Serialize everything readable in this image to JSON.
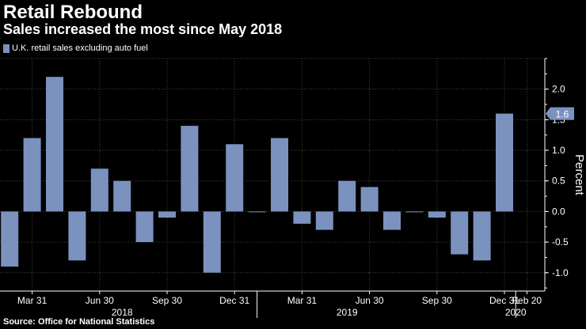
{
  "title": "Retail Rebound",
  "subtitle": "Sales increased the most since May 2018",
  "source": "Source: Office for National Statistics",
  "colors": {
    "bar": "#7b92bf",
    "grid": "#444444",
    "background": "#000000"
  },
  "chart_data": {
    "type": "bar",
    "title": "Retail Rebound",
    "series_name": "U.K. retail sales excluding auto fuel",
    "ylabel": "Percent",
    "ylim": [
      -1.3,
      2.5
    ],
    "yticks": [
      "2.0",
      "1.5",
      "1.0",
      "0.5",
      "0.0",
      "-0.5",
      "-1.0"
    ],
    "ytick_values": [
      2.0,
      1.5,
      1.0,
      0.5,
      0.0,
      -0.5,
      -1.0
    ],
    "categories": [
      "Feb 2018",
      "Mar 2018",
      "Apr 2018",
      "May 2018",
      "Jun 2018",
      "Jul 2018",
      "Aug 2018",
      "Sep 2018",
      "Oct 2018",
      "Nov 2018",
      "Dec 2018",
      "Jan 2019",
      "Feb 2019",
      "Mar 2019",
      "Apr 2019",
      "May 2019",
      "Jun 2019",
      "Jul 2019",
      "Aug 2019",
      "Sep 2019",
      "Oct 2019",
      "Nov 2019",
      "Dec 2019",
      "Jan 2020"
    ],
    "values": [
      -0.9,
      1.2,
      2.2,
      -0.8,
      0.7,
      0.5,
      -0.5,
      -0.1,
      1.4,
      -1.0,
      1.1,
      0.0,
      1.2,
      -0.2,
      -0.3,
      0.5,
      0.4,
      -0.3,
      0.0,
      -0.1,
      -0.7,
      -0.8,
      1.6,
      null
    ],
    "last_value_label": "1.6",
    "xtick_labels": [
      {
        "label": "Mar 31",
        "index": 1
      },
      {
        "label": "Jun 30",
        "index": 4
      },
      {
        "label": "Sep 30",
        "index": 7
      },
      {
        "label": "Dec 31",
        "index": 10
      },
      {
        "label": "Mar 31",
        "index": 13
      },
      {
        "label": "Jun 30",
        "index": 16
      },
      {
        "label": "Sep 30",
        "index": 19
      },
      {
        "label": "Dec 31",
        "index": 22
      },
      {
        "label": "Feb 20",
        "index": 23
      }
    ],
    "year_labels": [
      {
        "label": "2018",
        "index": 5
      },
      {
        "label": "2019",
        "index": 15
      },
      {
        "label": "2020",
        "index": 22.5
      }
    ],
    "year_separators": [
      10.5,
      22
    ]
  }
}
